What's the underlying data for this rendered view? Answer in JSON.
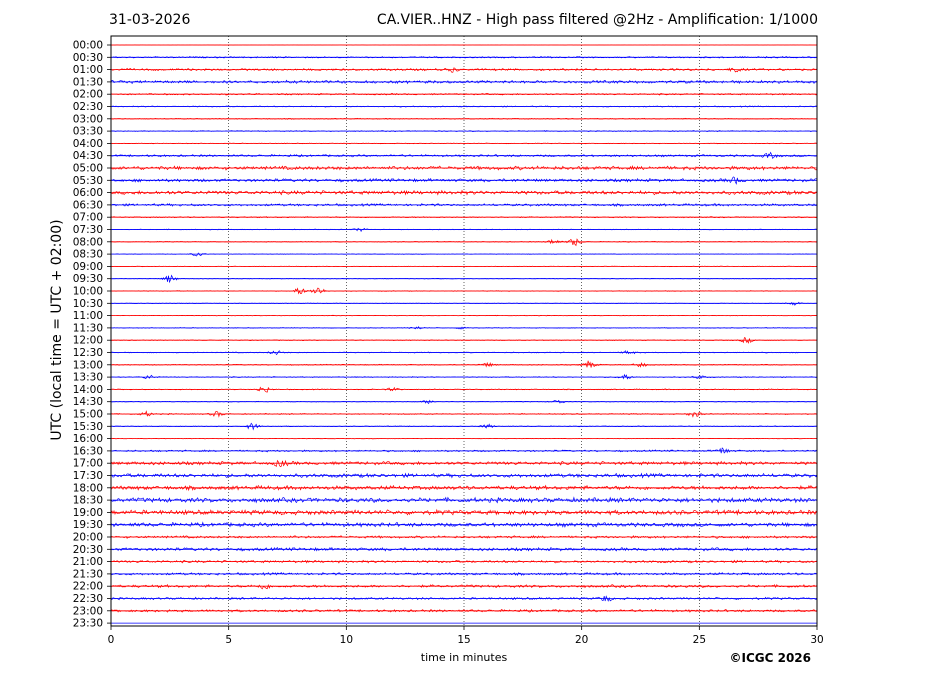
{
  "header": {
    "date": "31-03-2026",
    "title": "CA.VIER..HNZ - High pass filtered @2Hz - Amplification: 1/1000"
  },
  "credit": "©ICGC 2026",
  "chart_data": {
    "type": "line",
    "title": "CA.VIER..HNZ - High pass filtered @2Hz - Amplification: 1/1000",
    "xlabel": "time in minutes",
    "ylabel": "UTC (local time = UTC + 02:00)",
    "xlim": [
      0,
      30
    ],
    "x_ticks": [
      0,
      5,
      10,
      15,
      20,
      25,
      30
    ],
    "grid": "vertical dotted at x ticks",
    "colors": {
      "red": "#ff0000",
      "blue": "#0000ff"
    },
    "rows": [
      {
        "label": "00:00",
        "color": "red",
        "level": 0.03,
        "events": []
      },
      {
        "label": "00:30",
        "color": "blue",
        "level": 0.15,
        "events": []
      },
      {
        "label": "01:00",
        "color": "red",
        "level": 0.22,
        "events": [
          [
            14.5,
            0.35
          ],
          [
            26.5,
            0.35
          ]
        ]
      },
      {
        "label": "01:30",
        "color": "blue",
        "level": 0.3,
        "events": []
      },
      {
        "label": "02:00",
        "color": "red",
        "level": 0.16,
        "events": []
      },
      {
        "label": "02:30",
        "color": "blue",
        "level": 0.12,
        "events": []
      },
      {
        "label": "03:00",
        "color": "red",
        "level": 0.1,
        "events": []
      },
      {
        "label": "03:30",
        "color": "blue",
        "level": 0.1,
        "events": []
      },
      {
        "label": "04:00",
        "color": "red",
        "level": 0.08,
        "events": []
      },
      {
        "label": "04:30",
        "color": "blue",
        "level": 0.22,
        "events": [
          [
            28.0,
            0.45
          ]
        ]
      },
      {
        "label": "05:00",
        "color": "red",
        "level": 0.38,
        "events": []
      },
      {
        "label": "05:30",
        "color": "blue",
        "level": 0.32,
        "events": [
          [
            26.5,
            0.5
          ]
        ]
      },
      {
        "label": "06:00",
        "color": "red",
        "level": 0.4,
        "events": []
      },
      {
        "label": "06:30",
        "color": "blue",
        "level": 0.25,
        "events": []
      },
      {
        "label": "07:00",
        "color": "red",
        "level": 0.12,
        "events": []
      },
      {
        "label": "07:30",
        "color": "blue",
        "level": 0.08,
        "events": [
          [
            10.6,
            0.3
          ]
        ]
      },
      {
        "label": "08:00",
        "color": "red",
        "level": 0.08,
        "events": [
          [
            18.8,
            0.45
          ],
          [
            19.7,
            0.7
          ]
        ]
      },
      {
        "label": "08:30",
        "color": "blue",
        "level": 0.06,
        "events": [
          [
            3.7,
            0.35
          ]
        ]
      },
      {
        "label": "09:00",
        "color": "red",
        "level": 0.06,
        "events": []
      },
      {
        "label": "09:30",
        "color": "blue",
        "level": 0.06,
        "events": [
          [
            2.5,
            0.7
          ]
        ]
      },
      {
        "label": "10:00",
        "color": "red",
        "level": 0.08,
        "events": [
          [
            8.0,
            0.6
          ],
          [
            8.8,
            0.8
          ]
        ]
      },
      {
        "label": "10:30",
        "color": "blue",
        "level": 0.06,
        "events": [
          [
            29.0,
            0.35
          ]
        ]
      },
      {
        "label": "11:00",
        "color": "red",
        "level": 0.06,
        "events": []
      },
      {
        "label": "11:30",
        "color": "blue",
        "level": 0.08,
        "events": [
          [
            13.0,
            0.25
          ],
          [
            15.0,
            0.3
          ]
        ]
      },
      {
        "label": "12:00",
        "color": "red",
        "level": 0.08,
        "events": [
          [
            27.0,
            0.5
          ]
        ]
      },
      {
        "label": "12:30",
        "color": "blue",
        "level": 0.1,
        "events": [
          [
            7.0,
            0.4
          ],
          [
            22.0,
            0.35
          ]
        ]
      },
      {
        "label": "13:00",
        "color": "red",
        "level": 0.1,
        "events": [
          [
            16.0,
            0.35
          ],
          [
            20.3,
            0.7
          ],
          [
            22.5,
            0.4
          ]
        ]
      },
      {
        "label": "13:30",
        "color": "blue",
        "level": 0.1,
        "events": [
          [
            1.6,
            0.35
          ],
          [
            21.8,
            0.5
          ],
          [
            25.0,
            0.3
          ]
        ]
      },
      {
        "label": "14:00",
        "color": "red",
        "level": 0.1,
        "events": [
          [
            6.5,
            0.6
          ],
          [
            12.0,
            0.3
          ]
        ]
      },
      {
        "label": "14:30",
        "color": "blue",
        "level": 0.08,
        "events": [
          [
            13.5,
            0.3
          ],
          [
            19.0,
            0.35
          ]
        ]
      },
      {
        "label": "15:00",
        "color": "red",
        "level": 0.12,
        "events": [
          [
            1.5,
            0.4
          ],
          [
            4.5,
            0.45
          ],
          [
            24.8,
            0.5
          ]
        ]
      },
      {
        "label": "15:30",
        "color": "blue",
        "level": 0.08,
        "events": [
          [
            6.0,
            0.6
          ],
          [
            16.0,
            0.35
          ]
        ]
      },
      {
        "label": "16:00",
        "color": "red",
        "level": 0.06,
        "events": []
      },
      {
        "label": "16:30",
        "color": "blue",
        "level": 0.18,
        "events": [
          [
            26.0,
            0.55
          ]
        ]
      },
      {
        "label": "17:00",
        "color": "red",
        "level": 0.35,
        "events": [
          [
            7.2,
            0.5
          ]
        ]
      },
      {
        "label": "17:30",
        "color": "blue",
        "level": 0.4,
        "events": []
      },
      {
        "label": "18:00",
        "color": "red",
        "level": 0.42,
        "events": []
      },
      {
        "label": "18:30",
        "color": "blue",
        "level": 0.48,
        "events": []
      },
      {
        "label": "19:00",
        "color": "red",
        "level": 0.48,
        "events": []
      },
      {
        "label": "19:30",
        "color": "blue",
        "level": 0.42,
        "events": []
      },
      {
        "label": "20:00",
        "color": "red",
        "level": 0.25,
        "events": []
      },
      {
        "label": "20:30",
        "color": "blue",
        "level": 0.32,
        "events": []
      },
      {
        "label": "21:00",
        "color": "red",
        "level": 0.25,
        "events": []
      },
      {
        "label": "21:30",
        "color": "blue",
        "level": 0.25,
        "events": []
      },
      {
        "label": "22:00",
        "color": "red",
        "level": 0.28,
        "events": [
          [
            6.5,
            0.45
          ]
        ]
      },
      {
        "label": "22:30",
        "color": "blue",
        "level": 0.22,
        "events": [
          [
            21.0,
            0.5
          ]
        ]
      },
      {
        "label": "23:00",
        "color": "red",
        "level": 0.25,
        "events": []
      },
      {
        "label": "23:30",
        "color": "blue",
        "level": 0.0,
        "events": []
      }
    ]
  }
}
